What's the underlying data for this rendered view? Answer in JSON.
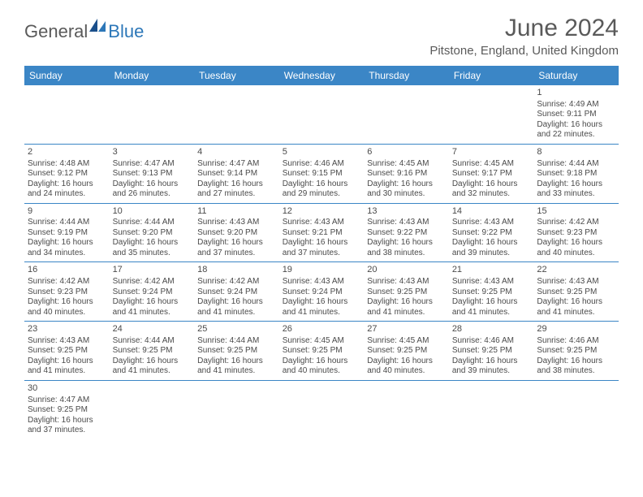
{
  "logo": {
    "general": "General",
    "blue": "Blue"
  },
  "title": "June 2024",
  "location": "Pitstone, England, United Kingdom",
  "colors": {
    "header_bg": "#3b86c6",
    "header_text": "#ffffff",
    "text": "#4a4a4a",
    "title_text": "#5a5a5a",
    "logo_general": "#5a5a5a",
    "logo_blue": "#2c77b8",
    "border": "#3b86c6",
    "background": "#ffffff"
  },
  "weekdays": [
    "Sunday",
    "Monday",
    "Tuesday",
    "Wednesday",
    "Thursday",
    "Friday",
    "Saturday"
  ],
  "weeks": [
    [
      null,
      null,
      null,
      null,
      null,
      null,
      {
        "n": "1",
        "sr": "Sunrise: 4:49 AM",
        "ss": "Sunset: 9:11 PM",
        "d1": "Daylight: 16 hours",
        "d2": "and 22 minutes."
      }
    ],
    [
      {
        "n": "2",
        "sr": "Sunrise: 4:48 AM",
        "ss": "Sunset: 9:12 PM",
        "d1": "Daylight: 16 hours",
        "d2": "and 24 minutes."
      },
      {
        "n": "3",
        "sr": "Sunrise: 4:47 AM",
        "ss": "Sunset: 9:13 PM",
        "d1": "Daylight: 16 hours",
        "d2": "and 26 minutes."
      },
      {
        "n": "4",
        "sr": "Sunrise: 4:47 AM",
        "ss": "Sunset: 9:14 PM",
        "d1": "Daylight: 16 hours",
        "d2": "and 27 minutes."
      },
      {
        "n": "5",
        "sr": "Sunrise: 4:46 AM",
        "ss": "Sunset: 9:15 PM",
        "d1": "Daylight: 16 hours",
        "d2": "and 29 minutes."
      },
      {
        "n": "6",
        "sr": "Sunrise: 4:45 AM",
        "ss": "Sunset: 9:16 PM",
        "d1": "Daylight: 16 hours",
        "d2": "and 30 minutes."
      },
      {
        "n": "7",
        "sr": "Sunrise: 4:45 AM",
        "ss": "Sunset: 9:17 PM",
        "d1": "Daylight: 16 hours",
        "d2": "and 32 minutes."
      },
      {
        "n": "8",
        "sr": "Sunrise: 4:44 AM",
        "ss": "Sunset: 9:18 PM",
        "d1": "Daylight: 16 hours",
        "d2": "and 33 minutes."
      }
    ],
    [
      {
        "n": "9",
        "sr": "Sunrise: 4:44 AM",
        "ss": "Sunset: 9:19 PM",
        "d1": "Daylight: 16 hours",
        "d2": "and 34 minutes."
      },
      {
        "n": "10",
        "sr": "Sunrise: 4:44 AM",
        "ss": "Sunset: 9:20 PM",
        "d1": "Daylight: 16 hours",
        "d2": "and 35 minutes."
      },
      {
        "n": "11",
        "sr": "Sunrise: 4:43 AM",
        "ss": "Sunset: 9:20 PM",
        "d1": "Daylight: 16 hours",
        "d2": "and 37 minutes."
      },
      {
        "n": "12",
        "sr": "Sunrise: 4:43 AM",
        "ss": "Sunset: 9:21 PM",
        "d1": "Daylight: 16 hours",
        "d2": "and 37 minutes."
      },
      {
        "n": "13",
        "sr": "Sunrise: 4:43 AM",
        "ss": "Sunset: 9:22 PM",
        "d1": "Daylight: 16 hours",
        "d2": "and 38 minutes."
      },
      {
        "n": "14",
        "sr": "Sunrise: 4:43 AM",
        "ss": "Sunset: 9:22 PM",
        "d1": "Daylight: 16 hours",
        "d2": "and 39 minutes."
      },
      {
        "n": "15",
        "sr": "Sunrise: 4:42 AM",
        "ss": "Sunset: 9:23 PM",
        "d1": "Daylight: 16 hours",
        "d2": "and 40 minutes."
      }
    ],
    [
      {
        "n": "16",
        "sr": "Sunrise: 4:42 AM",
        "ss": "Sunset: 9:23 PM",
        "d1": "Daylight: 16 hours",
        "d2": "and 40 minutes."
      },
      {
        "n": "17",
        "sr": "Sunrise: 4:42 AM",
        "ss": "Sunset: 9:24 PM",
        "d1": "Daylight: 16 hours",
        "d2": "and 41 minutes."
      },
      {
        "n": "18",
        "sr": "Sunrise: 4:42 AM",
        "ss": "Sunset: 9:24 PM",
        "d1": "Daylight: 16 hours",
        "d2": "and 41 minutes."
      },
      {
        "n": "19",
        "sr": "Sunrise: 4:43 AM",
        "ss": "Sunset: 9:24 PM",
        "d1": "Daylight: 16 hours",
        "d2": "and 41 minutes."
      },
      {
        "n": "20",
        "sr": "Sunrise: 4:43 AM",
        "ss": "Sunset: 9:25 PM",
        "d1": "Daylight: 16 hours",
        "d2": "and 41 minutes."
      },
      {
        "n": "21",
        "sr": "Sunrise: 4:43 AM",
        "ss": "Sunset: 9:25 PM",
        "d1": "Daylight: 16 hours",
        "d2": "and 41 minutes."
      },
      {
        "n": "22",
        "sr": "Sunrise: 4:43 AM",
        "ss": "Sunset: 9:25 PM",
        "d1": "Daylight: 16 hours",
        "d2": "and 41 minutes."
      }
    ],
    [
      {
        "n": "23",
        "sr": "Sunrise: 4:43 AM",
        "ss": "Sunset: 9:25 PM",
        "d1": "Daylight: 16 hours",
        "d2": "and 41 minutes."
      },
      {
        "n": "24",
        "sr": "Sunrise: 4:44 AM",
        "ss": "Sunset: 9:25 PM",
        "d1": "Daylight: 16 hours",
        "d2": "and 41 minutes."
      },
      {
        "n": "25",
        "sr": "Sunrise: 4:44 AM",
        "ss": "Sunset: 9:25 PM",
        "d1": "Daylight: 16 hours",
        "d2": "and 41 minutes."
      },
      {
        "n": "26",
        "sr": "Sunrise: 4:45 AM",
        "ss": "Sunset: 9:25 PM",
        "d1": "Daylight: 16 hours",
        "d2": "and 40 minutes."
      },
      {
        "n": "27",
        "sr": "Sunrise: 4:45 AM",
        "ss": "Sunset: 9:25 PM",
        "d1": "Daylight: 16 hours",
        "d2": "and 40 minutes."
      },
      {
        "n": "28",
        "sr": "Sunrise: 4:46 AM",
        "ss": "Sunset: 9:25 PM",
        "d1": "Daylight: 16 hours",
        "d2": "and 39 minutes."
      },
      {
        "n": "29",
        "sr": "Sunrise: 4:46 AM",
        "ss": "Sunset: 9:25 PM",
        "d1": "Daylight: 16 hours",
        "d2": "and 38 minutes."
      }
    ],
    [
      {
        "n": "30",
        "sr": "Sunrise: 4:47 AM",
        "ss": "Sunset: 9:25 PM",
        "d1": "Daylight: 16 hours",
        "d2": "and 37 minutes."
      },
      null,
      null,
      null,
      null,
      null,
      null
    ]
  ]
}
